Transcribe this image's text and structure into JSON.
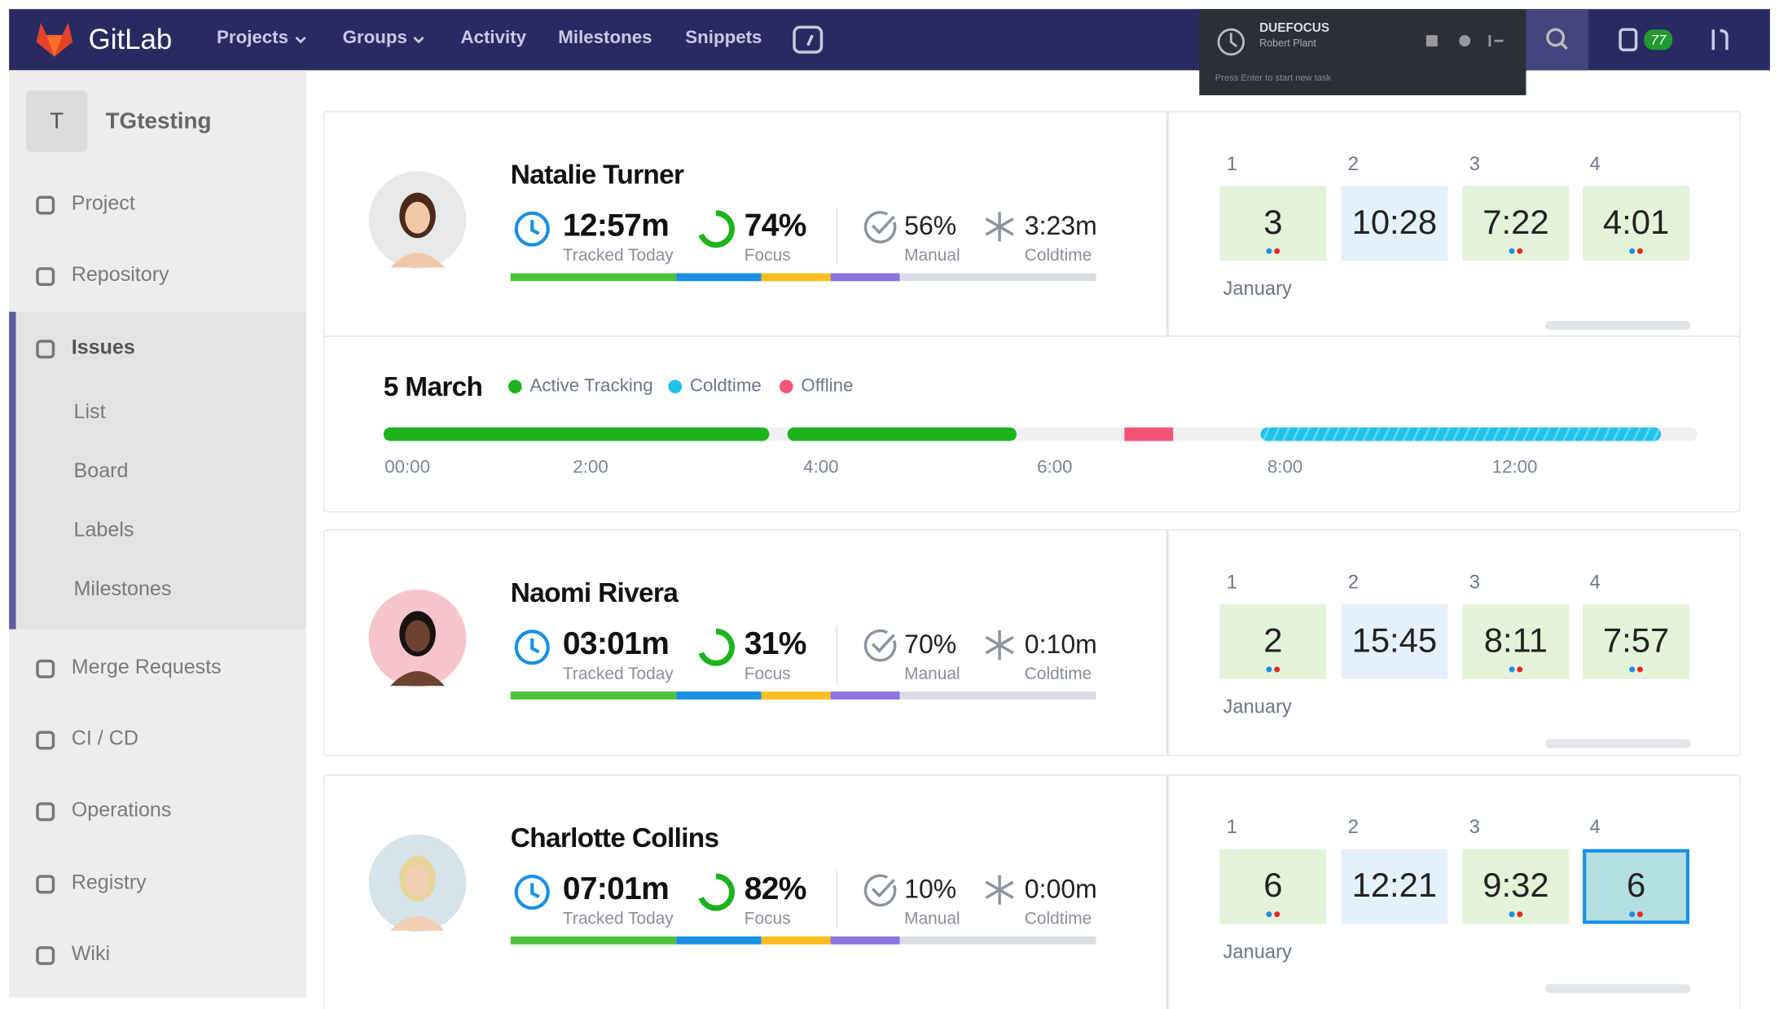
{
  "nav": {
    "brand": "GitLab",
    "items": [
      "Projects",
      "Groups",
      "Activity",
      "Milestones",
      "Snippets"
    ],
    "badge": "77"
  },
  "timer": {
    "app": "DUEFOCUS",
    "user": "Robert Plant",
    "hint": "Press Enter to start new task"
  },
  "sidebar": {
    "avatar": "T",
    "project": "TGtesting",
    "items": [
      "Project",
      "Repository",
      "Issues",
      "Merge Requests",
      "CI / CD",
      "Operations",
      "Registry",
      "Wiki"
    ],
    "subitems": [
      "List",
      "Board",
      "Labels",
      "Milestones"
    ]
  },
  "users": [
    {
      "name": "Natalie Turner",
      "tracked": "12:57m",
      "tracked_label": "Tracked Today",
      "focus": "74%",
      "focus_label": "Focus",
      "manual": "56%",
      "manual_label": "Manual",
      "coldtime": "3:23m",
      "coldtime_label": "Coldtime",
      "days": [
        "1",
        "2",
        "3",
        "4"
      ],
      "cells": [
        "3",
        "10:28",
        "7:22",
        "4:01"
      ],
      "month": "January"
    },
    {
      "name": "Naomi Rivera",
      "tracked": "03:01m",
      "tracked_label": "Tracked Today",
      "focus": "31%",
      "focus_label": "Focus",
      "manual": "70%",
      "manual_label": "Manual",
      "coldtime": "0:10m",
      "coldtime_label": "Coldtime",
      "days": [
        "1",
        "2",
        "3",
        "4"
      ],
      "cells": [
        "2",
        "15:45",
        "8:11",
        "7:57"
      ],
      "month": "January"
    },
    {
      "name": "Charlotte Collins",
      "tracked": "07:01m",
      "tracked_label": "Tracked Today",
      "focus": "82%",
      "focus_label": "Focus",
      "manual": "10%",
      "manual_label": "Manual",
      "coldtime": "0:00m",
      "coldtime_label": "Coldtime",
      "days": [
        "1",
        "2",
        "3",
        "4"
      ],
      "cells": [
        "6",
        "12:21",
        "9:32",
        "6"
      ],
      "month": "January"
    }
  ],
  "timeline": {
    "date": "5 March",
    "legend": [
      {
        "name": "Active Tracking",
        "color": "#1db31d"
      },
      {
        "name": "Coldtime",
        "color": "#1fc3ea"
      },
      {
        "name": "Offline",
        "color": "#f45577"
      }
    ],
    "ticks": [
      "00:00",
      "2:00",
      "4:00",
      "6:00",
      "8:00",
      "12:00"
    ]
  }
}
